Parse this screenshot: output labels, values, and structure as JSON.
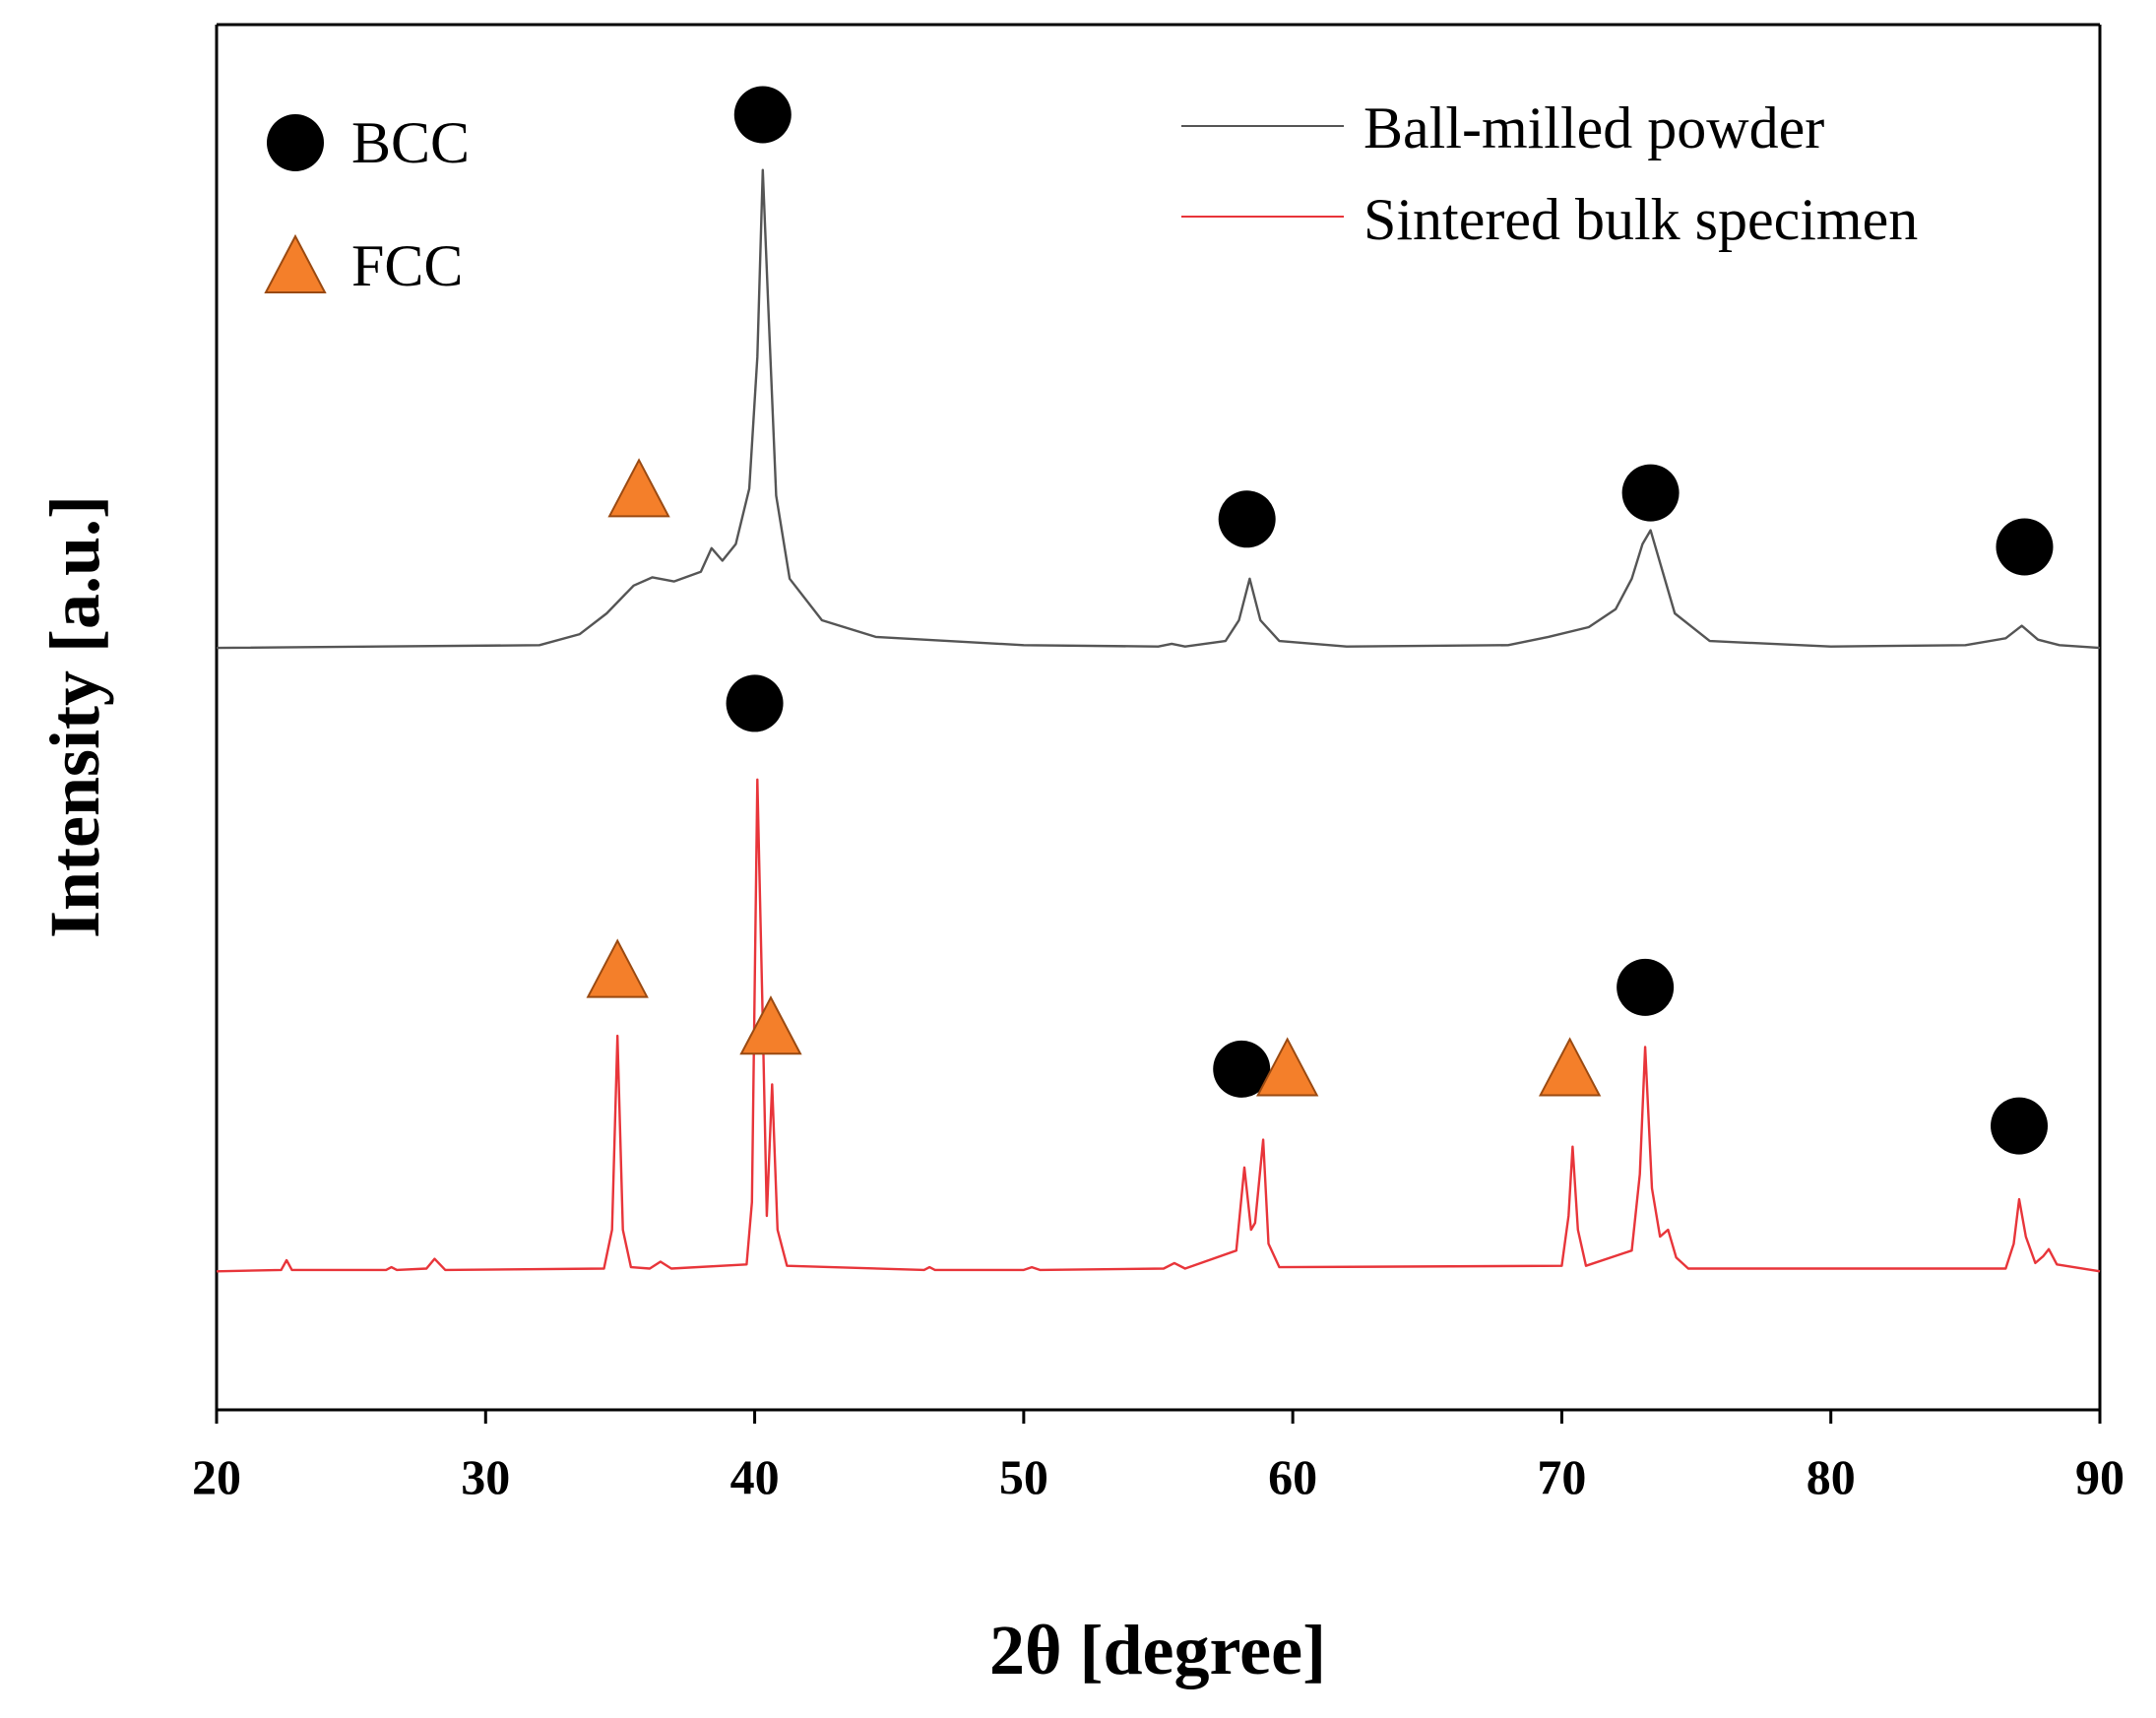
{
  "chart_data": {
    "type": "line",
    "title": "",
    "xlabel": "2θ [degree]",
    "ylabel": "Intensity [a.u.]",
    "xlim": [
      20,
      90
    ],
    "ylim": [
      0,
      100
    ],
    "xticks": [
      20,
      30,
      40,
      50,
      60,
      70,
      80,
      90
    ],
    "yticks": [],
    "grid": false,
    "legend_position": "top-right",
    "series": [
      {
        "name": "Ball-milled powder",
        "color": "#555555",
        "baseline": 55,
        "points": [
          [
            20,
            55
          ],
          [
            32,
            55.2
          ],
          [
            33.5,
            56
          ],
          [
            34.5,
            57.5
          ],
          [
            35.5,
            59.5
          ],
          [
            36.2,
            60.1
          ],
          [
            37,
            59.8
          ],
          [
            38,
            60.5
          ],
          [
            38.4,
            62.2
          ],
          [
            38.8,
            61.3
          ],
          [
            39.3,
            62.5
          ],
          [
            39.8,
            66.5
          ],
          [
            40.1,
            76
          ],
          [
            40.3,
            89.5
          ],
          [
            40.5,
            80
          ],
          [
            40.8,
            66
          ],
          [
            41.3,
            60
          ],
          [
            42.5,
            57
          ],
          [
            44.5,
            55.8
          ],
          [
            50,
            55.2
          ],
          [
            55,
            55.1
          ],
          [
            55.5,
            55.3
          ],
          [
            56,
            55.1
          ],
          [
            57.5,
            55.5
          ],
          [
            58,
            57
          ],
          [
            58.4,
            60
          ],
          [
            58.8,
            57
          ],
          [
            59.5,
            55.5
          ],
          [
            62,
            55.1
          ],
          [
            68,
            55.2
          ],
          [
            69.5,
            55.8
          ],
          [
            71,
            56.5
          ],
          [
            72,
            57.8
          ],
          [
            72.6,
            60
          ],
          [
            73.0,
            62.5
          ],
          [
            73.3,
            63.5
          ],
          [
            73.6,
            61.5
          ],
          [
            74.2,
            57.5
          ],
          [
            75.5,
            55.5
          ],
          [
            80,
            55.1
          ],
          [
            85,
            55.2
          ],
          [
            86.5,
            55.7
          ],
          [
            87.1,
            56.6
          ],
          [
            87.7,
            55.6
          ],
          [
            88.5,
            55.2
          ],
          [
            90,
            55
          ]
        ]
      },
      {
        "name": "Sintered bulk specimen",
        "color": "#e8353a",
        "baseline": 10,
        "points": [
          [
            20,
            10
          ],
          [
            22.4,
            10.1
          ],
          [
            22.6,
            10.8
          ],
          [
            22.8,
            10.1
          ],
          [
            26.3,
            10.1
          ],
          [
            26.5,
            10.3
          ],
          [
            26.7,
            10.1
          ],
          [
            27.8,
            10.2
          ],
          [
            28.1,
            10.9
          ],
          [
            28.5,
            10.1
          ],
          [
            34.4,
            10.2
          ],
          [
            34.7,
            13
          ],
          [
            34.9,
            27
          ],
          [
            35.1,
            13
          ],
          [
            35.4,
            10.3
          ],
          [
            36.1,
            10.2
          ],
          [
            36.5,
            10.7
          ],
          [
            36.9,
            10.2
          ],
          [
            39.7,
            10.5
          ],
          [
            39.9,
            15
          ],
          [
            40.1,
            45.5
          ],
          [
            40.3,
            28
          ],
          [
            40.45,
            14
          ],
          [
            40.65,
            23.5
          ],
          [
            40.85,
            13
          ],
          [
            41.2,
            10.4
          ],
          [
            46.3,
            10.1
          ],
          [
            46.5,
            10.3
          ],
          [
            46.7,
            10.1
          ],
          [
            50.0,
            10.1
          ],
          [
            50.3,
            10.3
          ],
          [
            50.6,
            10.1
          ],
          [
            55.2,
            10.2
          ],
          [
            55.6,
            10.6
          ],
          [
            56.0,
            10.2
          ],
          [
            57.9,
            11.5
          ],
          [
            58.2,
            17.5
          ],
          [
            58.45,
            13
          ],
          [
            58.6,
            13.5
          ],
          [
            58.9,
            19.5
          ],
          [
            59.1,
            12
          ],
          [
            59.5,
            10.3
          ],
          [
            70.0,
            10.4
          ],
          [
            70.25,
            14
          ],
          [
            70.4,
            19
          ],
          [
            70.6,
            13
          ],
          [
            70.9,
            10.4
          ],
          [
            72.6,
            11.5
          ],
          [
            72.9,
            17
          ],
          [
            73.1,
            26.2
          ],
          [
            73.35,
            16
          ],
          [
            73.65,
            12.5
          ],
          [
            73.95,
            13
          ],
          [
            74.25,
            11
          ],
          [
            74.7,
            10.2
          ],
          [
            86.5,
            10.2
          ],
          [
            86.8,
            12
          ],
          [
            87.0,
            15.2
          ],
          [
            87.25,
            12.5
          ],
          [
            87.6,
            10.6
          ],
          [
            87.9,
            11.1
          ],
          [
            88.1,
            11.6
          ],
          [
            88.4,
            10.5
          ],
          [
            90,
            10
          ]
        ]
      }
    ],
    "phase_legend": [
      {
        "label": "BCC",
        "marker": "circle",
        "color": "#000000"
      },
      {
        "label": "FCC",
        "marker": "triangle",
        "color": "#f47f2a"
      }
    ],
    "peak_markers": [
      {
        "phase": "BCC",
        "x": 40.3,
        "y": 93.5
      },
      {
        "phase": "FCC",
        "x": 35.7,
        "y": 66.5
      },
      {
        "phase": "BCC",
        "x": 58.3,
        "y": 64.3
      },
      {
        "phase": "BCC",
        "x": 73.3,
        "y": 66.2
      },
      {
        "phase": "BCC",
        "x": 87.2,
        "y": 62.3
      },
      {
        "phase": "BCC",
        "x": 40.0,
        "y": 51
      },
      {
        "phase": "FCC",
        "x": 34.9,
        "y": 31.8
      },
      {
        "phase": "FCC",
        "x": 40.6,
        "y": 27.7
      },
      {
        "phase": "BCC",
        "x": 58.1,
        "y": 24.6
      },
      {
        "phase": "FCC",
        "x": 59.8,
        "y": 24.7
      },
      {
        "phase": "FCC",
        "x": 70.3,
        "y": 24.7
      },
      {
        "phase": "BCC",
        "x": 73.1,
        "y": 30.5
      },
      {
        "phase": "BCC",
        "x": 87.0,
        "y": 20.5
      }
    ]
  }
}
